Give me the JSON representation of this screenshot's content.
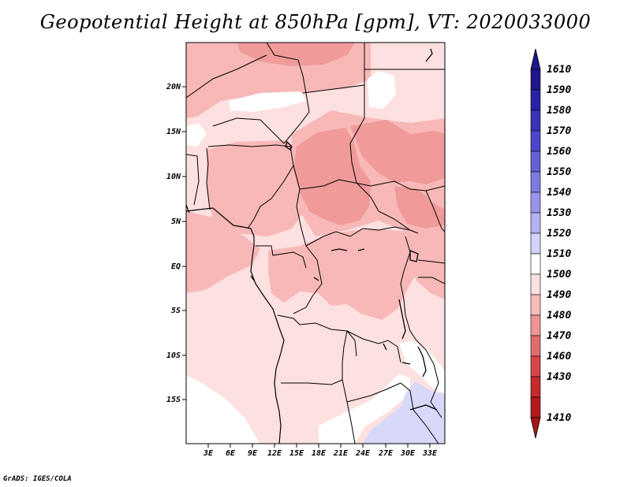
{
  "title": "Geopotential Height at 850hPa [gpm], VT: 2020033000",
  "credit": "GrADS: IGES/COLA",
  "map": {
    "variable": "Geopotential Height",
    "level": "850hPa",
    "units": "gpm",
    "valid_time": "2020033000",
    "lat_labels": [
      "20N",
      "15N",
      "10N",
      "5N",
      "EQ",
      "5S",
      "10S",
      "15S"
    ],
    "lon_labels": [
      "3E",
      "6E",
      "9E",
      "12E",
      "15E",
      "18E",
      "21E",
      "24E",
      "27E",
      "30E",
      "33E"
    ]
  },
  "colorbar": {
    "labels": [
      "1610",
      "1590",
      "1580",
      "1570",
      "1560",
      "1550",
      "1540",
      "1530",
      "1520",
      "1510",
      "1500",
      "1490",
      "1480",
      "1470",
      "1460",
      "1430",
      "1410"
    ],
    "colors": [
      "#1e168c",
      "#2a22a4",
      "#3a32b8",
      "#4c46c8",
      "#6560d6",
      "#7e7ae0",
      "#9894ea",
      "#b4b2f2",
      "#d2d2fa",
      "#ffffff",
      "#fde0e0",
      "#f8bcbc",
      "#ef9494",
      "#e26c6c",
      "#d64646",
      "#c42a2a",
      "#b01a1a"
    ],
    "top_color": "#1e168c",
    "bottom_color": "#a51616"
  },
  "palette": {
    "p1490": "#f8b8b8",
    "p1500": "#fde0e0",
    "p1480": "#f09a9a",
    "p1510": "#ffffff",
    "p1520": "#d8d8fa"
  }
}
